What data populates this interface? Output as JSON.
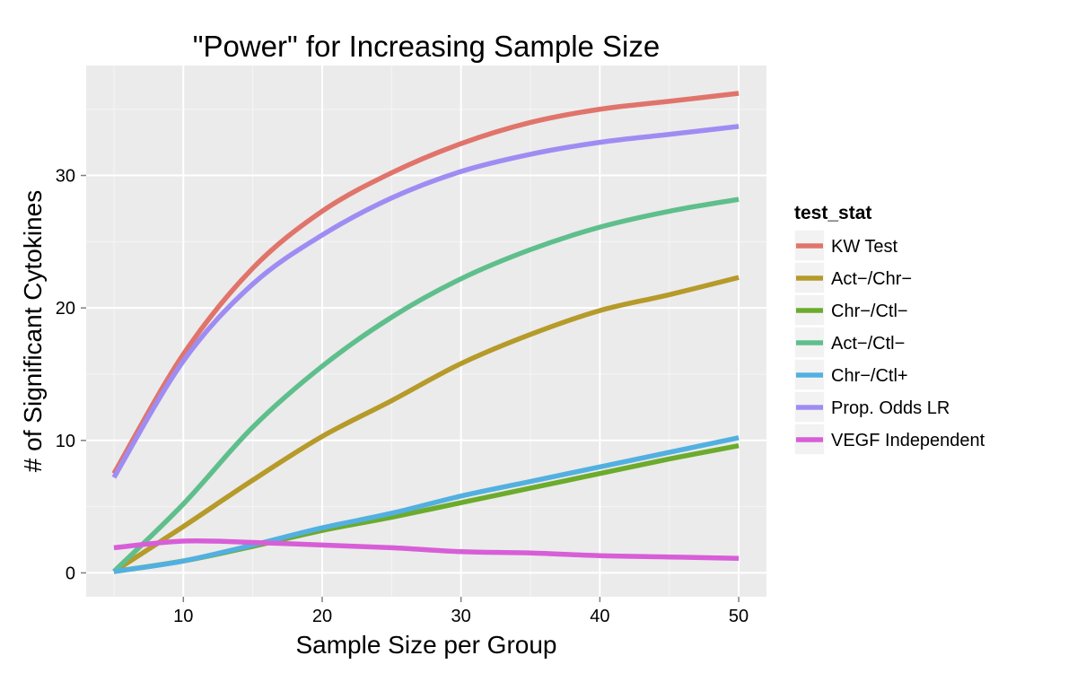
{
  "chart_data": {
    "type": "line",
    "title": "\"Power\" for Increasing Sample Size",
    "xlabel": "Sample Size per Group",
    "ylabel": "# of Significant Cytokines",
    "xlim": [
      3,
      52
    ],
    "ylim": [
      -1.8,
      38.3
    ],
    "x_ticks": [
      10,
      20,
      30,
      40,
      50
    ],
    "y_ticks": [
      0,
      10,
      20,
      30
    ],
    "grid": true,
    "legend": {
      "title": "test_stat",
      "position": "right"
    },
    "x": [
      5,
      10,
      15,
      20,
      25,
      30,
      35,
      40,
      45,
      50
    ],
    "series": [
      {
        "name": "KW Test",
        "color": "#E0746B",
        "values": [
          7.5,
          16.5,
          23.0,
          27.3,
          30.2,
          32.4,
          34.0,
          35.0,
          35.6,
          36.2
        ]
      },
      {
        "name": "Act−/Chr−",
        "color": "#B69A2A",
        "values": [
          0.1,
          3.5,
          7.0,
          10.3,
          13.0,
          15.8,
          18.0,
          19.8,
          21.0,
          22.3
        ]
      },
      {
        "name": "Chr−/Ctl−",
        "color": "#6CAB2C",
        "values": [
          0.1,
          0.9,
          2.0,
          3.2,
          4.2,
          5.3,
          6.4,
          7.5,
          8.6,
          9.6
        ]
      },
      {
        "name": "Act−/Ctl−",
        "color": "#5FBF8C",
        "values": [
          0.1,
          5.2,
          11.0,
          15.6,
          19.3,
          22.2,
          24.4,
          26.1,
          27.3,
          28.2
        ]
      },
      {
        "name": "Chr−/Ctl+",
        "color": "#52B0E1",
        "values": [
          0.1,
          0.9,
          2.1,
          3.4,
          4.5,
          5.8,
          6.9,
          8.0,
          9.1,
          10.2
        ]
      },
      {
        "name": "Prop. Odds LR",
        "color": "#9F8CF3",
        "values": [
          7.2,
          16.0,
          21.8,
          25.5,
          28.3,
          30.3,
          31.6,
          32.5,
          33.1,
          33.7
        ]
      },
      {
        "name": "VEGF Independent",
        "color": "#D85ED8",
        "values": [
          1.9,
          2.4,
          2.3,
          2.1,
          1.9,
          1.6,
          1.5,
          1.3,
          1.2,
          1.1
        ]
      }
    ]
  }
}
